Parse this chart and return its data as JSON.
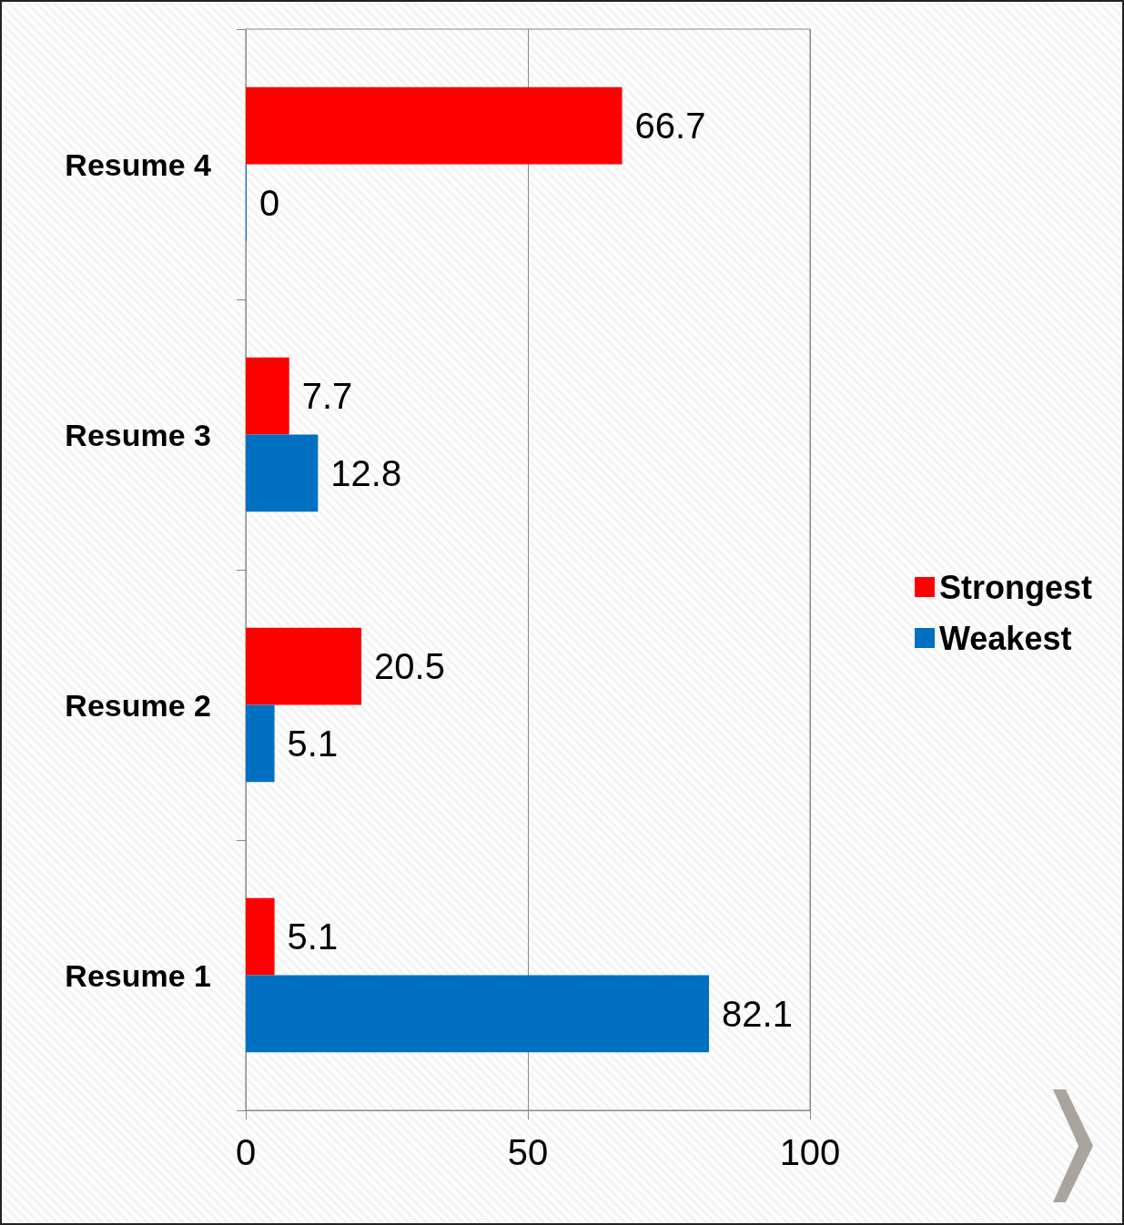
{
  "chart_data": {
    "type": "bar",
    "orientation": "horizontal",
    "categories": [
      "Resume 4",
      "Resume 3",
      "Resume 2",
      "Resume 1"
    ],
    "series": [
      {
        "name": "Strongest",
        "color": "#ff0000",
        "values": [
          66.7,
          7.7,
          20.5,
          5.1
        ]
      },
      {
        "name": "Weakest",
        "color": "#0070c0",
        "values": [
          0,
          12.8,
          5.1,
          82.1
        ]
      }
    ],
    "xlim": [
      0,
      100
    ],
    "xticks": [
      0,
      50,
      100
    ],
    "grid": "x",
    "legend": "right",
    "data_labels": true
  }
}
